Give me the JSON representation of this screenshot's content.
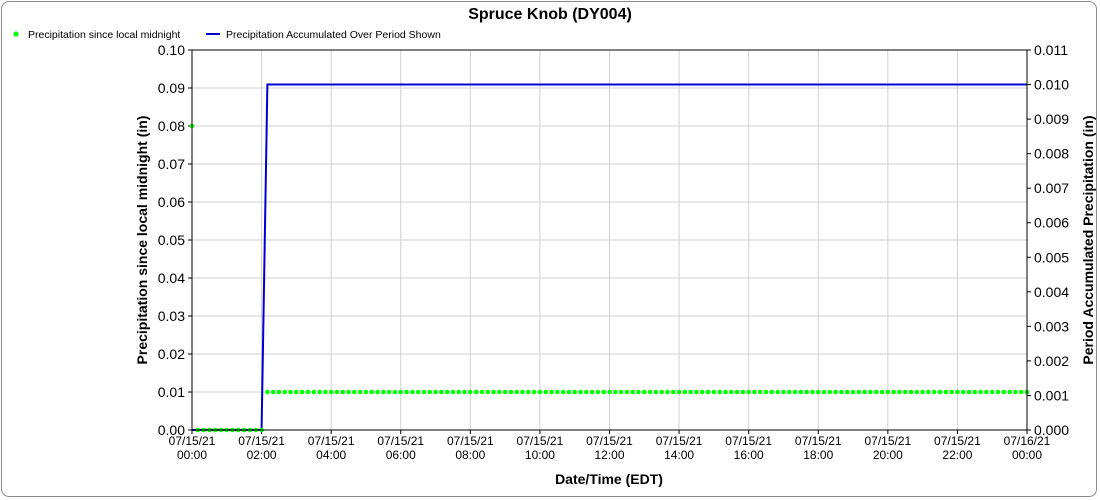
{
  "chart_data": {
    "type": "line",
    "title": "Spruce Knob (DY004)",
    "xlabel": "Date/Time (EDT)",
    "ylabel_left": "Precipitation since local midnight (in)",
    "ylabel_right": "Period Accumulated Precipitation (in)",
    "x_ticks": [
      {
        "date": "07/15/21",
        "time": "00:00"
      },
      {
        "date": "07/15/21",
        "time": "02:00"
      },
      {
        "date": "07/15/21",
        "time": "04:00"
      },
      {
        "date": "07/15/21",
        "time": "06:00"
      },
      {
        "date": "07/15/21",
        "time": "08:00"
      },
      {
        "date": "07/15/21",
        "time": "10:00"
      },
      {
        "date": "07/15/21",
        "time": "12:00"
      },
      {
        "date": "07/15/21",
        "time": "14:00"
      },
      {
        "date": "07/15/21",
        "time": "16:00"
      },
      {
        "date": "07/15/21",
        "time": "18:00"
      },
      {
        "date": "07/15/21",
        "time": "20:00"
      },
      {
        "date": "07/15/21",
        "time": "22:00"
      },
      {
        "date": "07/16/21",
        "time": "00:00"
      }
    ],
    "xlim": [
      "07/15/21 00:00",
      "07/16/21 00:00"
    ],
    "ylim_left": [
      0,
      0.1
    ],
    "ylim_right": [
      0,
      0.011
    ],
    "y_ticks_left": [
      "0.00",
      "0.01",
      "0.02",
      "0.03",
      "0.04",
      "0.05",
      "0.06",
      "0.07",
      "0.08",
      "0.09",
      "0.10"
    ],
    "y_ticks_right": [
      "0.000",
      "0.001",
      "0.002",
      "0.003",
      "0.004",
      "0.005",
      "0.006",
      "0.007",
      "0.008",
      "0.009",
      "0.010",
      "0.011"
    ],
    "grid": true,
    "legend_position": "top-left",
    "series": [
      {
        "name": "Precipitation since local midnight",
        "axis": "left",
        "style": "points",
        "color": "#00ff00",
        "interval_minutes": 10,
        "points": [
          {
            "time": "07/15/21 00:00",
            "value": 0.08
          },
          {
            "time": "07/15/21 00:10",
            "value": 0.0
          },
          {
            "time": "07/15/21 00:20",
            "value": 0.0
          },
          {
            "time": "07/15/21 00:30",
            "value": 0.0
          },
          {
            "time": "07/15/21 00:40",
            "value": 0.0
          },
          {
            "time": "07/15/21 00:50",
            "value": 0.0
          },
          {
            "time": "07/15/21 01:00",
            "value": 0.0
          },
          {
            "time": "07/15/21 01:10",
            "value": 0.0
          },
          {
            "time": "07/15/21 01:20",
            "value": 0.0
          },
          {
            "time": "07/15/21 01:30",
            "value": 0.0
          },
          {
            "time": "07/15/21 01:40",
            "value": 0.0
          },
          {
            "time": "07/15/21 01:50",
            "value": 0.0
          },
          {
            "time": "07/15/21 02:00",
            "value": 0.0
          },
          {
            "time": "07/15/21 02:10",
            "value": 0.01
          }
        ],
        "constant_from": {
          "start": "07/15/21 02:10",
          "end": "07/16/21 00:00",
          "value": 0.01
        }
      },
      {
        "name": "Precipitation Accumulated Over Period Shown",
        "axis": "right",
        "style": "line",
        "color": "#0000cc",
        "points": [
          {
            "time": "07/15/21 00:00",
            "value": 0.0
          },
          {
            "time": "07/15/21 02:00",
            "value": 0.0
          },
          {
            "time": "07/15/21 02:10",
            "value": 0.01
          },
          {
            "time": "07/16/21 00:00",
            "value": 0.01
          }
        ]
      }
    ]
  }
}
